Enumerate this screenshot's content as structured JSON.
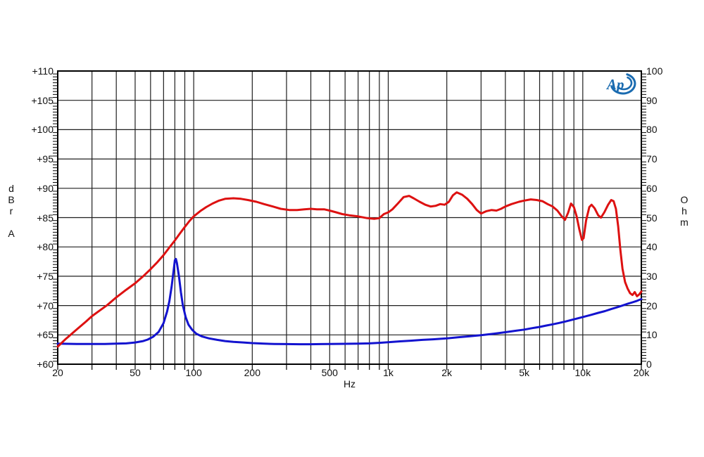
{
  "figure": {
    "logo_text": "Ap",
    "left_axis_title_lines": [
      "d",
      "B",
      "r",
      "",
      "A"
    ],
    "right_axis_title_lines": [
      "O",
      "h",
      "m"
    ]
  },
  "colors": {
    "response": "#dd1111",
    "impedance": "#1313cf",
    "grid": "#1f1f1f",
    "frame": "#000000",
    "tick": "#000000",
    "logo_blue": "#1a6bb0",
    "background": "#ffffff"
  },
  "chart_data": {
    "type": "line",
    "x_scale": "log",
    "x_range": [
      20,
      20000
    ],
    "xlabel": "Hz",
    "grid": true,
    "legend": "none",
    "left_axis": {
      "title": "dBr A",
      "range": [
        60,
        110
      ],
      "ticks": [
        {
          "v": 110,
          "label": "+110"
        },
        {
          "v": 105,
          "label": "+105"
        },
        {
          "v": 100,
          "label": "+100"
        },
        {
          "v": 95,
          "label": "+95"
        },
        {
          "v": 90,
          "label": "+90"
        },
        {
          "v": 85,
          "label": "+85"
        },
        {
          "v": 80,
          "label": "+80"
        },
        {
          "v": 75,
          "label": "+75"
        },
        {
          "v": 70,
          "label": "+70"
        },
        {
          "v": 65,
          "label": "+65"
        },
        {
          "v": 60,
          "label": "+60"
        }
      ]
    },
    "right_axis": {
      "title": "Ohm",
      "range": [
        0,
        100
      ],
      "ticks": [
        {
          "v": 100,
          "label": "100"
        },
        {
          "v": 90,
          "label": "90"
        },
        {
          "v": 80,
          "label": "80"
        },
        {
          "v": 70,
          "label": "70"
        },
        {
          "v": 60,
          "label": "60"
        },
        {
          "v": 50,
          "label": "50"
        },
        {
          "v": 40,
          "label": "40"
        },
        {
          "v": 30,
          "label": "30"
        },
        {
          "v": 20,
          "label": "20"
        },
        {
          "v": 10,
          "label": "10"
        },
        {
          "v": 0,
          "label": "0"
        }
      ]
    },
    "x_ticks": [
      {
        "f": 20,
        "label": "20"
      },
      {
        "f": 50,
        "label": "50"
      },
      {
        "f": 100,
        "label": "100"
      },
      {
        "f": 200,
        "label": "200"
      },
      {
        "f": 500,
        "label": "500"
      },
      {
        "f": 1000,
        "label": "1k"
      },
      {
        "f": 2000,
        "label": "2k"
      },
      {
        "f": 5000,
        "label": "5k"
      },
      {
        "f": 10000,
        "label": "10k"
      },
      {
        "f": 20000,
        "label": "20k"
      }
    ],
    "x_gridlines": [
      20,
      30,
      40,
      50,
      60,
      70,
      80,
      90,
      100,
      200,
      300,
      400,
      500,
      600,
      700,
      800,
      900,
      1000,
      2000,
      3000,
      4000,
      5000,
      6000,
      7000,
      8000,
      9000,
      10000,
      20000
    ],
    "y_gridlines": [
      60,
      65,
      70,
      75,
      80,
      85,
      90,
      95,
      100,
      105,
      110
    ],
    "series": [
      {
        "name": "impedance",
        "axis": "right",
        "unit": "Ohm",
        "color": "#1313cf",
        "points": [
          [
            20,
            7.0
          ],
          [
            25,
            6.9
          ],
          [
            30,
            6.9
          ],
          [
            35,
            6.9
          ],
          [
            40,
            7.0
          ],
          [
            45,
            7.1
          ],
          [
            50,
            7.4
          ],
          [
            55,
            7.9
          ],
          [
            58,
            8.4
          ],
          [
            62,
            9.4
          ],
          [
            66,
            11.0
          ],
          [
            70,
            14.0
          ],
          [
            73,
            18.0
          ],
          [
            75,
            21.5
          ],
          [
            77,
            26.5
          ],
          [
            79,
            32.5
          ],
          [
            80,
            35.5
          ],
          [
            81,
            35.9
          ],
          [
            82,
            34.5
          ],
          [
            84,
            30.0
          ],
          [
            86,
            24.5
          ],
          [
            88,
            20.0
          ],
          [
            91,
            16.0
          ],
          [
            94,
            13.5
          ],
          [
            98,
            11.8
          ],
          [
            103,
            10.4
          ],
          [
            110,
            9.5
          ],
          [
            120,
            8.8
          ],
          [
            132,
            8.3
          ],
          [
            145,
            7.9
          ],
          [
            160,
            7.6
          ],
          [
            180,
            7.4
          ],
          [
            200,
            7.2
          ],
          [
            230,
            7.0
          ],
          [
            260,
            6.9
          ],
          [
            300,
            6.85
          ],
          [
            350,
            6.8
          ],
          [
            400,
            6.8
          ],
          [
            450,
            6.85
          ],
          [
            500,
            6.9
          ],
          [
            600,
            6.95
          ],
          [
            700,
            7.0
          ],
          [
            800,
            7.1
          ],
          [
            900,
            7.3
          ],
          [
            1000,
            7.5
          ],
          [
            1150,
            7.8
          ],
          [
            1300,
            8.0
          ],
          [
            1500,
            8.3
          ],
          [
            1700,
            8.5
          ],
          [
            2000,
            8.8
          ],
          [
            2300,
            9.2
          ],
          [
            2600,
            9.5
          ],
          [
            3000,
            9.9
          ],
          [
            3500,
            10.4
          ],
          [
            4000,
            10.9
          ],
          [
            4500,
            11.4
          ],
          [
            5000,
            11.8
          ],
          [
            5500,
            12.3
          ],
          [
            6000,
            12.7
          ],
          [
            6500,
            13.2
          ],
          [
            7000,
            13.6
          ],
          [
            7600,
            14.1
          ],
          [
            8200,
            14.6
          ],
          [
            9000,
            15.3
          ],
          [
            10000,
            16.1
          ],
          [
            11000,
            16.8
          ],
          [
            12000,
            17.5
          ],
          [
            13000,
            18.1
          ],
          [
            14000,
            18.8
          ],
          [
            15000,
            19.4
          ],
          [
            16000,
            20.0
          ],
          [
            17000,
            20.6
          ],
          [
            18000,
            21.1
          ],
          [
            19000,
            21.6
          ],
          [
            20000,
            22.2
          ]
        ]
      },
      {
        "name": "response",
        "axis": "left",
        "unit": "dBr A",
        "color": "#dd1111",
        "points": [
          [
            20,
            63.0
          ],
          [
            22,
            64.3
          ],
          [
            25,
            65.9
          ],
          [
            28,
            67.3
          ],
          [
            30,
            68.2
          ],
          [
            33,
            69.2
          ],
          [
            36,
            70.1
          ],
          [
            40,
            71.4
          ],
          [
            45,
            72.7
          ],
          [
            50,
            73.8
          ],
          [
            55,
            75.0
          ],
          [
            60,
            76.2
          ],
          [
            65,
            77.4
          ],
          [
            70,
            78.6
          ],
          [
            75,
            79.9
          ],
          [
            80,
            81.1
          ],
          [
            85,
            82.3
          ],
          [
            90,
            83.4
          ],
          [
            95,
            84.4
          ],
          [
            100,
            85.2
          ],
          [
            108,
            86.1
          ],
          [
            116,
            86.8
          ],
          [
            125,
            87.4
          ],
          [
            135,
            87.9
          ],
          [
            145,
            88.2
          ],
          [
            160,
            88.3
          ],
          [
            175,
            88.2
          ],
          [
            190,
            88.0
          ],
          [
            210,
            87.7
          ],
          [
            230,
            87.3
          ],
          [
            255,
            86.9
          ],
          [
            280,
            86.5
          ],
          [
            310,
            86.3
          ],
          [
            340,
            86.3
          ],
          [
            370,
            86.4
          ],
          [
            400,
            86.5
          ],
          [
            430,
            86.4
          ],
          [
            470,
            86.4
          ],
          [
            500,
            86.2
          ],
          [
            540,
            85.9
          ],
          [
            580,
            85.6
          ],
          [
            630,
            85.4
          ],
          [
            700,
            85.2
          ],
          [
            780,
            84.9
          ],
          [
            850,
            84.8
          ],
          [
            900,
            84.9
          ],
          [
            950,
            85.6
          ],
          [
            1000,
            85.9
          ],
          [
            1050,
            86.4
          ],
          [
            1120,
            87.4
          ],
          [
            1200,
            88.5
          ],
          [
            1280,
            88.7
          ],
          [
            1350,
            88.3
          ],
          [
            1450,
            87.7
          ],
          [
            1550,
            87.2
          ],
          [
            1650,
            86.9
          ],
          [
            1750,
            87.0
          ],
          [
            1850,
            87.3
          ],
          [
            1950,
            87.2
          ],
          [
            2050,
            87.7
          ],
          [
            2150,
            88.8
          ],
          [
            2250,
            89.3
          ],
          [
            2400,
            88.9
          ],
          [
            2550,
            88.2
          ],
          [
            2700,
            87.3
          ],
          [
            2850,
            86.3
          ],
          [
            3000,
            85.7
          ],
          [
            3200,
            86.1
          ],
          [
            3400,
            86.3
          ],
          [
            3600,
            86.2
          ],
          [
            3800,
            86.5
          ],
          [
            4000,
            86.9
          ],
          [
            4300,
            87.3
          ],
          [
            4700,
            87.7
          ],
          [
            5000,
            87.9
          ],
          [
            5400,
            88.1
          ],
          [
            5800,
            88.0
          ],
          [
            6200,
            87.8
          ],
          [
            6600,
            87.3
          ],
          [
            7000,
            86.9
          ],
          [
            7400,
            86.2
          ],
          [
            7800,
            85.2
          ],
          [
            8100,
            84.6
          ],
          [
            8400,
            85.8
          ],
          [
            8700,
            87.4
          ],
          [
            9000,
            86.8
          ],
          [
            9300,
            85.2
          ],
          [
            9600,
            83.0
          ],
          [
            9900,
            81.2
          ],
          [
            10100,
            81.5
          ],
          [
            10400,
            84.5
          ],
          [
            10800,
            86.8
          ],
          [
            11100,
            87.2
          ],
          [
            11500,
            86.6
          ],
          [
            12000,
            85.4
          ],
          [
            12400,
            85.0
          ],
          [
            12900,
            85.9
          ],
          [
            13500,
            87.2
          ],
          [
            14000,
            88.0
          ],
          [
            14400,
            87.8
          ],
          [
            14800,
            86.5
          ],
          [
            15200,
            83.5
          ],
          [
            15600,
            79.5
          ],
          [
            16000,
            76.3
          ],
          [
            16500,
            74.0
          ],
          [
            17000,
            72.9
          ],
          [
            17500,
            72.1
          ],
          [
            18000,
            71.8
          ],
          [
            18500,
            72.3
          ],
          [
            19000,
            71.6
          ],
          [
            19500,
            71.9
          ],
          [
            20000,
            72.4
          ]
        ]
      }
    ]
  }
}
